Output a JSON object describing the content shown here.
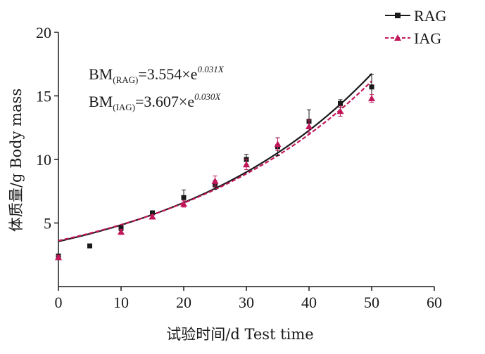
{
  "chart_data": {
    "type": "scatter",
    "xlabel": "试验时间/d Test time",
    "ylabel": "体质量/g Body mass",
    "xlim": [
      0,
      60
    ],
    "ylim": [
      0,
      20
    ],
    "x_ticks": [
      "0",
      "10",
      "20",
      "30",
      "40",
      "50",
      "60"
    ],
    "y_ticks": [
      "5",
      "10",
      "15",
      "20"
    ],
    "grid": false,
    "legend_position": "top-right",
    "series": [
      {
        "name": "RAG",
        "color": "#1a1a1a",
        "marker": "square",
        "x": [
          0,
          5,
          10,
          15,
          20,
          25,
          30,
          35,
          40,
          45,
          50
        ],
        "y": [
          2.4,
          3.2,
          4.6,
          5.8,
          7.0,
          8.0,
          10.0,
          11.0,
          13.0,
          14.4,
          15.7
        ],
        "error": [
          0.15,
          0.1,
          0.2,
          0.15,
          0.6,
          0.35,
          0.4,
          0.7,
          0.9,
          0.3,
          1.0
        ],
        "fit": {
          "a": 3.554,
          "b": 0.031
        }
      },
      {
        "name": "IAG",
        "color": "#c2185b",
        "marker": "triangle",
        "x": [
          0,
          10,
          15,
          20,
          25,
          30,
          35,
          40,
          45,
          50
        ],
        "y": [
          2.3,
          4.3,
          5.5,
          6.5,
          8.3,
          9.6,
          11.2,
          12.6,
          13.8,
          14.8
        ],
        "error": [
          0.15,
          0.2,
          0.15,
          0.25,
          0.4,
          0.4,
          0.5,
          0.5,
          0.4,
          0.3
        ],
        "fit": {
          "a": 3.607,
          "b": 0.03
        }
      }
    ],
    "annotations": {
      "eq1": {
        "main": "BM",
        "sub": "(RAG)",
        "mid": "=3.554×e",
        "sup": "0.031X"
      },
      "eq2": {
        "main": "BM",
        "sub": "(IAG)",
        "mid": "=3.607×e",
        "sup": "0.030X"
      }
    }
  }
}
